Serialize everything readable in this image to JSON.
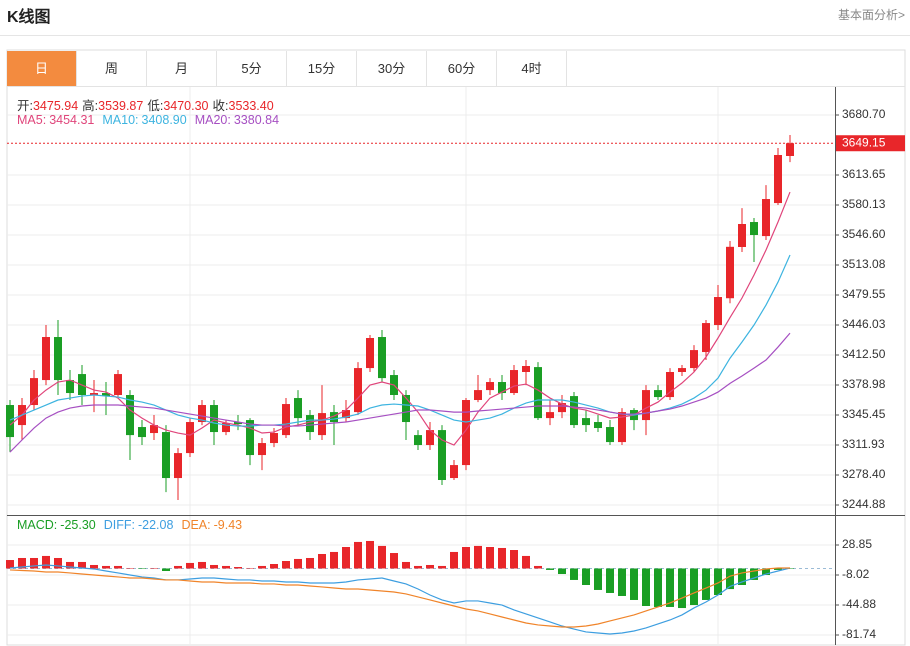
{
  "header": {
    "title": "K线图",
    "link": "基本面分析>"
  },
  "tabs": [
    "日",
    "周",
    "月",
    "5分",
    "15分",
    "30分",
    "60分",
    "4时"
  ],
  "active_tab": 0,
  "chart_data": [
    {
      "type": "candlestick",
      "up_color": "#e8262a",
      "down_color": "#1a9e24",
      "readout": [
        {
          "name": "开:",
          "value": 3475.94,
          "label": "3475.94"
        },
        {
          "name": "高:",
          "value": 3539.87,
          "label": "3539.87"
        },
        {
          "name": "低:",
          "value": 3470.3,
          "label": "3470.30"
        },
        {
          "name": "收:",
          "value": 3533.4,
          "label": "3533.40"
        }
      ],
      "open": [
        3356.6,
        3334.2,
        3356.6,
        3384.5,
        3432.6,
        3384.5,
        3391.2,
        3367.8,
        3370.0,
        3367.8,
        3367.8,
        3332.0,
        3325.3,
        3326.4,
        3275.0,
        3302.9,
        3337.6,
        3356.6,
        3326.4,
        3337.6,
        3339.8,
        3300.7,
        3314.1,
        3323.0,
        3364.4,
        3345.4,
        3323.0,
        3348.7,
        3342.0,
        3348.7,
        3397.9,
        3432.6,
        3390.1,
        3367.8,
        3323.0,
        3311.9,
        3328.6,
        3275.0,
        3289.5,
        3362.2,
        3373.3,
        3382.3,
        3370.0,
        3393.5,
        3399.0,
        3342.0,
        3348.7,
        3366.6,
        3342.0,
        3337.6,
        3332.0,
        3315.2,
        3351.0,
        3339.8,
        3373.3,
        3365.5,
        3393.5,
        3397.9,
        3415.8,
        3446.0,
        3475.94,
        3533.2,
        3561.1,
        3545.4,
        3582.3,
        3634.9
      ],
      "high": [
        3362.2,
        3364.4,
        3395.7,
        3446.0,
        3451.6,
        3395.7,
        3401.3,
        3384.5,
        3382.3,
        3395.7,
        3373.3,
        3339.8,
        3345.4,
        3334.2,
        3308.5,
        3342.0,
        3362.2,
        3362.2,
        3339.8,
        3345.4,
        3342.0,
        3319.7,
        3330.9,
        3364.4,
        3373.3,
        3351.0,
        3378.9,
        3356.6,
        3362.2,
        3404.6,
        3434.8,
        3440.4,
        3395.7,
        3373.3,
        3328.6,
        3337.6,
        3334.2,
        3295.1,
        3364.4,
        3390.1,
        3386.7,
        3390.1,
        3401.3,
        3406.9,
        3404.6,
        3362.2,
        3367.8,
        3371.1,
        3351.0,
        3345.4,
        3339.8,
        3353.2,
        3353.2,
        3378.9,
        3378.9,
        3397.9,
        3401.3,
        3423.6,
        3451.6,
        3490.7,
        3539.87,
        3576.7,
        3565.6,
        3602.4,
        3643.8,
        3658.3
      ],
      "low": [
        3304.0,
        3317.5,
        3351.0,
        3378.9,
        3367.8,
        3362.2,
        3356.6,
        3348.7,
        3345.4,
        3364.4,
        3295.1,
        3311.9,
        3317.5,
        3259.3,
        3250.4,
        3298.5,
        3334.2,
        3311.9,
        3323.0,
        3328.6,
        3289.5,
        3283.9,
        3309.6,
        3319.7,
        3334.2,
        3317.5,
        3317.5,
        3311.9,
        3337.6,
        3345.4,
        3393.5,
        3382.3,
        3362.2,
        3317.5,
        3306.3,
        3306.3,
        3267.2,
        3272.8,
        3283.9,
        3359.9,
        3367.8,
        3362.2,
        3367.8,
        3378.9,
        3339.8,
        3334.2,
        3342.0,
        3330.9,
        3326.4,
        3326.4,
        3311.9,
        3311.9,
        3328.6,
        3323.0,
        3362.2,
        3362.2,
        3389.0,
        3393.5,
        3406.9,
        3440.4,
        3470.3,
        3527.6,
        3516.4,
        3541.0,
        3580.1,
        3628.1
      ],
      "close": [
        3320.8,
        3356.6,
        3386.7,
        3432.6,
        3384.5,
        3370.0,
        3367.8,
        3370.0,
        3366.6,
        3391.2,
        3323.0,
        3320.8,
        3334.2,
        3275.0,
        3302.9,
        3337.6,
        3356.6,
        3326.4,
        3336.5,
        3335.3,
        3300.7,
        3314.1,
        3325.3,
        3357.7,
        3342.0,
        3326.4,
        3347.6,
        3337.6,
        3351.0,
        3397.9,
        3431.5,
        3386.7,
        3367.8,
        3337.6,
        3311.9,
        3328.6,
        3272.8,
        3289.5,
        3362.2,
        3373.3,
        3382.3,
        3370.0,
        3395.7,
        3400.2,
        3342.0,
        3348.7,
        3358.8,
        3334.2,
        3334.2,
        3330.9,
        3315.2,
        3348.7,
        3339.8,
        3373.3,
        3365.5,
        3393.5,
        3397.9,
        3418.0,
        3448.2,
        3477.3,
        3533.4,
        3558.9,
        3546.6,
        3586.8,
        3636.0,
        3649.15
      ],
      "series": [
        {
          "name": "MA5:",
          "color": "#e0457b",
          "readout": {
            "value": 3454.31,
            "label": "3454.31"
          },
          "values": [
            3334.2,
            3345.4,
            3362.2,
            3373.3,
            3382.3,
            3384.5,
            3378.9,
            3373.3,
            3371.1,
            3364.4,
            3351.0,
            3342.0,
            3334.2,
            3328.6,
            3325.3,
            3323.0,
            3330.9,
            3339.8,
            3336.5,
            3334.2,
            3330.9,
            3325.3,
            3326.4,
            3332.0,
            3334.2,
            3337.6,
            3339.8,
            3344.3,
            3351.0,
            3364.4,
            3378.9,
            3382.3,
            3378.9,
            3364.4,
            3348.7,
            3328.6,
            3317.5,
            3311.9,
            3328.6,
            3348.7,
            3364.4,
            3371.1,
            3377.8,
            3380.0,
            3373.3,
            3364.4,
            3357.7,
            3353.2,
            3351.0,
            3346.5,
            3342.0,
            3343.2,
            3345.4,
            3353.2,
            3359.9,
            3371.1,
            3381.2,
            3393.5,
            3410.2,
            3431.5,
            3454.31,
            3476.2,
            3501.9,
            3529.8,
            3561.1,
            3594.6
          ]
        },
        {
          "name": "MA10:",
          "color": "#3db4e0",
          "readout": {
            "value": 3408.9,
            "label": "3408.90"
          },
          "values": [
            3339.8,
            3345.4,
            3351.0,
            3356.6,
            3362.2,
            3364.4,
            3366.6,
            3367.8,
            3366.6,
            3365.5,
            3362.2,
            3359.9,
            3356.6,
            3351.0,
            3345.4,
            3342.0,
            3339.8,
            3336.5,
            3334.2,
            3333.1,
            3333.1,
            3334.2,
            3334.2,
            3335.3,
            3337.6,
            3339.8,
            3339.8,
            3340.9,
            3343.2,
            3346.5,
            3353.2,
            3356.6,
            3357.7,
            3356.6,
            3355.5,
            3351.0,
            3345.4,
            3339.8,
            3337.6,
            3339.8,
            3342.0,
            3346.5,
            3353.2,
            3358.8,
            3362.2,
            3362.2,
            3362.2,
            3359.9,
            3356.6,
            3353.2,
            3348.7,
            3346.5,
            3345.4,
            3347.6,
            3349.9,
            3353.2,
            3357.7,
            3364.4,
            3373.3,
            3386.7,
            3408.9,
            3427.0,
            3446.0,
            3468.3,
            3494.0,
            3524.2
          ]
        },
        {
          "name": "MA20:",
          "color": "#a64fc2",
          "readout": {
            "value": 3380.84,
            "label": "3380.84"
          },
          "values": [
            3304.0,
            3317.5,
            3330.9,
            3342.0,
            3348.7,
            3353.2,
            3355.5,
            3356.6,
            3356.6,
            3356.6,
            3355.5,
            3354.3,
            3353.2,
            3351.0,
            3348.7,
            3346.5,
            3344.3,
            3342.0,
            3339.8,
            3337.6,
            3335.3,
            3334.2,
            3334.2,
            3333.1,
            3333.1,
            3334.2,
            3335.3,
            3336.5,
            3337.6,
            3339.8,
            3342.0,
            3344.3,
            3346.5,
            3348.7,
            3351.0,
            3351.0,
            3349.9,
            3348.7,
            3348.7,
            3349.9,
            3351.0,
            3352.1,
            3353.2,
            3354.3,
            3355.5,
            3355.5,
            3355.5,
            3354.3,
            3353.2,
            3351.0,
            3348.7,
            3346.5,
            3346.5,
            3347.6,
            3349.9,
            3352.1,
            3355.5,
            3359.9,
            3364.4,
            3371.1,
            3380.84,
            3389.0,
            3397.9,
            3406.9,
            3421.4,
            3437.0
          ]
        }
      ],
      "last_price": 3649.15,
      "ylim": [
        3233.7,
        3712.0
      ],
      "yticks": [
        {
          "value": 3680.7,
          "label": "3680.70"
        },
        3613.65,
        3580.13,
        {
          "value": 3546.6,
          "label": "3546.60"
        },
        3513.08,
        3479.55,
        3446.03,
        {
          "value": 3412.5,
          "label": "3412.50"
        },
        3378.98,
        3345.45,
        3311.93,
        {
          "value": 3278.4,
          "label": "3278.40"
        },
        3244.88
      ],
      "grid": true
    },
    {
      "type": "macd",
      "bars": {
        "name": "MACD:",
        "color": "#1a9e24",
        "up_color": "#e8262a",
        "down_color": "#1a9e24",
        "readout": {
          "value": -25.3,
          "label": "-25.30"
        },
        "values": [
          10.4,
          12.9,
          12.9,
          15.4,
          12.9,
          8.0,
          8.0,
          4.3,
          3.1,
          3.1,
          0.6,
          -0.6,
          0.6,
          -3.1,
          3.1,
          6.8,
          8.0,
          4.3,
          3.1,
          1.8,
          0.6,
          3.1,
          5.5,
          9.2,
          11.7,
          12.9,
          17.8,
          20.3,
          26.4,
          32.6,
          33.8,
          27.7,
          19.0,
          8.0,
          3.1,
          4.3,
          3.1,
          20.3,
          26.4,
          27.7,
          26.4,
          25.2,
          22.7,
          15.4,
          3.1,
          -1.8,
          -6.8,
          -14.1,
          -20.3,
          -26.4,
          -30.1,
          -33.8,
          -38.7,
          -46.1,
          -47.3,
          -47.3,
          -48.6,
          -44.9,
          -38.7,
          -32.6,
          -25.3,
          -20.3,
          -14.1,
          -8.0,
          -1.8,
          -0.6
        ]
      },
      "series": [
        {
          "name": "DIFF:",
          "color": "#3d9ee0",
          "readout": {
            "value": -22.08,
            "label": "-22.08"
          },
          "values": [
            0.6,
            1.8,
            3.1,
            4.3,
            3.1,
            1.8,
            0.6,
            -0.6,
            -3.1,
            -5.5,
            -8.0,
            -10.4,
            -11.7,
            -14.1,
            -14.1,
            -12.9,
            -11.7,
            -11.7,
            -12.9,
            -14.1,
            -14.1,
            -15.4,
            -15.4,
            -16.6,
            -16.6,
            -17.8,
            -17.8,
            -17.8,
            -16.6,
            -14.1,
            -12.9,
            -11.7,
            -15.4,
            -19.0,
            -25.2,
            -32.6,
            -38.7,
            -42.4,
            -39.9,
            -39.9,
            -42.4,
            -44.9,
            -51.0,
            -55.9,
            -60.8,
            -65.7,
            -70.7,
            -74.4,
            -78.0,
            -79.3,
            -80.5,
            -79.3,
            -76.8,
            -73.1,
            -68.2,
            -63.3,
            -57.1,
            -48.5,
            -41.2,
            -32.6,
            -22.08,
            -16.6,
            -11.7,
            -6.8,
            -3.1,
            0.6
          ]
        },
        {
          "name": "DEA:",
          "color": "#f0842a",
          "readout": {
            "value": -9.43,
            "label": "-9.43"
          },
          "values": [
            -1.8,
            -2.5,
            -3.1,
            -4.3,
            -4.3,
            -5.5,
            -6.8,
            -8.0,
            -9.2,
            -10.4,
            -11.7,
            -11.7,
            -12.9,
            -14.1,
            -14.1,
            -15.4,
            -16.6,
            -16.6,
            -17.8,
            -17.8,
            -17.8,
            -19.0,
            -19.0,
            -20.3,
            -20.3,
            -21.5,
            -22.7,
            -24.0,
            -25.2,
            -25.2,
            -26.4,
            -27.7,
            -28.9,
            -31.3,
            -35.0,
            -38.7,
            -42.4,
            -46.1,
            -49.8,
            -52.2,
            -55.9,
            -59.6,
            -63.3,
            -67.0,
            -69.4,
            -70.7,
            -71.9,
            -71.9,
            -70.7,
            -68.2,
            -64.5,
            -60.8,
            -57.1,
            -52.2,
            -47.3,
            -42.4,
            -36.3,
            -30.1,
            -24.0,
            -17.8,
            -9.43,
            -5.5,
            -3.1,
            -0.6,
            0.6,
            0.6
          ]
        }
      ],
      "ylim": [
        -94.03,
        65.72
      ],
      "yticks": [
        28.85,
        -8.02,
        -44.88,
        -81.74
      ],
      "grid": true
    }
  ]
}
